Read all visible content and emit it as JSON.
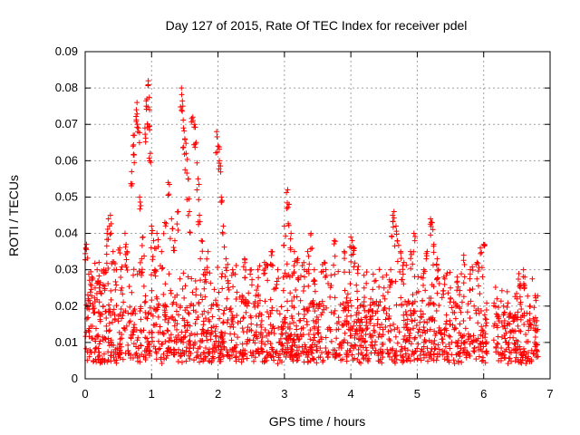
{
  "chart_data": {
    "type": "scatter",
    "title": "Day 127 of 2015, Rate Of TEC Index for receiver pdel",
    "xlabel": "GPS time / hours",
    "ylabel": "ROTI / TECUs",
    "xlim": [
      0,
      7
    ],
    "ylim": [
      0,
      0.09
    ],
    "x_ticks": [
      "0",
      "1",
      "2",
      "3",
      "4",
      "5",
      "6",
      "7"
    ],
    "y_ticks": [
      "0",
      "0.01",
      "0.02",
      "0.03",
      "0.04",
      "0.05",
      "0.06",
      "0.07",
      "0.08",
      "0.09"
    ],
    "grid": true,
    "marker": "+",
    "color": "#ff0000",
    "series": [
      {
        "name": "ROTI",
        "points": [
          [
            0.01,
            0.036
          ],
          [
            0.02,
            0.037
          ],
          [
            0.05,
            0.022
          ],
          [
            0.08,
            0.026
          ],
          [
            0.1,
            0.028
          ],
          [
            0.12,
            0.02
          ],
          [
            0.15,
            0.025
          ],
          [
            0.18,
            0.03
          ],
          [
            0.22,
            0.024
          ],
          [
            0.28,
            0.03
          ],
          [
            0.33,
            0.04
          ],
          [
            0.35,
            0.044
          ],
          [
            0.38,
            0.045
          ],
          [
            0.42,
            0.035
          ],
          [
            0.47,
            0.03
          ],
          [
            0.52,
            0.036
          ],
          [
            0.55,
            0.025
          ],
          [
            0.6,
            0.04
          ],
          [
            0.63,
            0.035
          ],
          [
            0.7,
            0.057
          ],
          [
            0.72,
            0.064
          ],
          [
            0.74,
            0.067
          ],
          [
            0.77,
            0.074
          ],
          [
            0.78,
            0.076
          ],
          [
            0.8,
            0.069
          ],
          [
            0.82,
            0.05
          ],
          [
            0.85,
            0.033
          ],
          [
            0.87,
            0.039
          ],
          [
            0.9,
            0.069
          ],
          [
            0.92,
            0.075
          ],
          [
            0.93,
            0.077
          ],
          [
            0.95,
            0.082
          ],
          [
            0.97,
            0.074
          ],
          [
            0.98,
            0.062
          ],
          [
            1.0,
            0.042
          ],
          [
            1.03,
            0.038
          ],
          [
            1.05,
            0.03
          ],
          [
            1.08,
            0.04
          ],
          [
            1.15,
            0.035
          ],
          [
            1.2,
            0.043
          ],
          [
            1.25,
            0.054
          ],
          [
            1.3,
            0.044
          ],
          [
            1.35,
            0.038
          ],
          [
            1.4,
            0.046
          ],
          [
            1.45,
            0.08
          ],
          [
            1.47,
            0.075
          ],
          [
            1.48,
            0.069
          ],
          [
            1.5,
            0.066
          ],
          [
            1.52,
            0.062
          ],
          [
            1.55,
            0.055
          ],
          [
            1.57,
            0.046
          ],
          [
            1.62,
            0.072
          ],
          [
            1.65,
            0.07
          ],
          [
            1.67,
            0.065
          ],
          [
            1.7,
            0.055
          ],
          [
            1.72,
            0.045
          ],
          [
            1.75,
            0.038
          ],
          [
            1.8,
            0.03
          ],
          [
            1.85,
            0.035
          ],
          [
            1.98,
            0.068
          ],
          [
            2.0,
            0.064
          ],
          [
            2.02,
            0.06
          ],
          [
            2.05,
            0.05
          ],
          [
            2.08,
            0.042
          ],
          [
            2.12,
            0.033
          ],
          [
            2.15,
            0.027
          ],
          [
            2.22,
            0.03
          ],
          [
            2.4,
            0.033
          ],
          [
            2.5,
            0.03
          ],
          [
            2.6,
            0.03
          ],
          [
            2.7,
            0.032
          ],
          [
            2.8,
            0.035
          ],
          [
            2.9,
            0.03
          ],
          [
            3.0,
            0.042
          ],
          [
            3.05,
            0.052
          ],
          [
            3.07,
            0.048
          ],
          [
            3.1,
            0.04
          ],
          [
            3.15,
            0.035
          ],
          [
            3.2,
            0.033
          ],
          [
            3.3,
            0.03
          ],
          [
            3.35,
            0.035
          ],
          [
            3.4,
            0.04
          ],
          [
            3.45,
            0.03
          ],
          [
            3.6,
            0.032
          ],
          [
            3.75,
            0.038
          ],
          [
            3.9,
            0.035
          ],
          [
            4.0,
            0.039
          ],
          [
            4.02,
            0.038
          ],
          [
            4.05,
            0.036
          ],
          [
            4.1,
            0.03
          ],
          [
            4.2,
            0.025
          ],
          [
            4.3,
            0.022
          ],
          [
            4.5,
            0.025
          ],
          [
            4.6,
            0.03
          ],
          [
            4.63,
            0.045
          ],
          [
            4.65,
            0.046
          ],
          [
            4.68,
            0.042
          ],
          [
            4.7,
            0.038
          ],
          [
            4.75,
            0.035
          ],
          [
            4.8,
            0.032
          ],
          [
            4.9,
            0.035
          ],
          [
            4.95,
            0.04
          ],
          [
            5.1,
            0.03
          ],
          [
            5.15,
            0.035
          ],
          [
            5.2,
            0.044
          ],
          [
            5.22,
            0.043
          ],
          [
            5.25,
            0.037
          ],
          [
            5.3,
            0.033
          ],
          [
            5.4,
            0.028
          ],
          [
            5.5,
            0.025
          ],
          [
            5.6,
            0.028
          ],
          [
            5.7,
            0.034
          ],
          [
            5.8,
            0.03
          ],
          [
            5.9,
            0.032
          ],
          [
            5.95,
            0.036
          ],
          [
            6.0,
            0.037
          ],
          [
            6.2,
            0.022
          ],
          [
            6.3,
            0.02
          ],
          [
            6.4,
            0.018
          ],
          [
            6.5,
            0.022
          ],
          [
            6.55,
            0.025
          ],
          [
            6.6,
            0.03
          ],
          [
            6.62,
            0.028
          ],
          [
            6.7,
            0.02
          ],
          [
            6.8,
            0.016
          ]
        ]
      }
    ],
    "background_band": {
      "note": "dense cloud of low ROTI values across all times, gap between 6.05 and 6.15 h",
      "segments": [
        {
          "x": [
            0.0,
            6.05
          ],
          "ymin": 0.004,
          "ymax": 0.02
        },
        {
          "x": [
            6.15,
            6.82
          ],
          "ymin": 0.004,
          "ymax": 0.017
        }
      ]
    }
  }
}
